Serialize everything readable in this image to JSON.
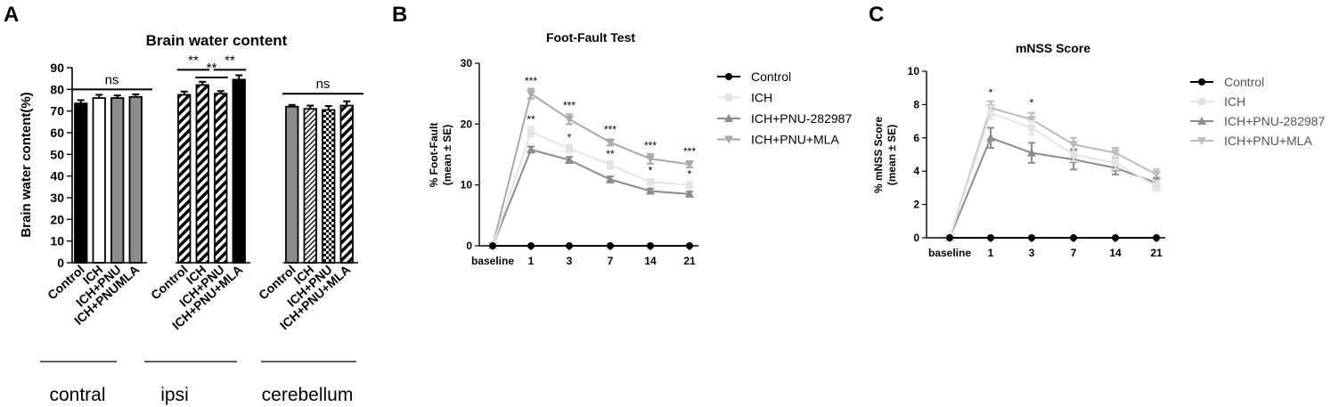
{
  "chart_data": [
    {
      "panel": "A",
      "type": "bar",
      "title": "Brain water content",
      "ylabel": "Brain water content(%)",
      "ylim": [
        0,
        90
      ],
      "yticks": [
        0,
        10,
        20,
        30,
        40,
        50,
        60,
        70,
        80,
        90
      ],
      "groups": [
        {
          "name": "contral",
          "categories": [
            "Control",
            "ICH",
            "ICH+PNU",
            "ICH+PNUMLA"
          ],
          "values": [
            73.5,
            76.0,
            76.0,
            76.5
          ],
          "errors": [
            1.5,
            1.5,
            1.2,
            1.2
          ],
          "fills": [
            "black",
            "white",
            "gray",
            "gray"
          ],
          "brackets": [
            {
              "label": "ns",
              "from": 0,
              "to": 3,
              "y": 80
            }
          ]
        },
        {
          "name": "ipsi",
          "categories": [
            "Control",
            "ICH",
            "ICH+PNU",
            "ICH+PNU+MLA"
          ],
          "values": [
            77.5,
            82.0,
            78.0,
            84.5
          ],
          "errors": [
            1.5,
            1.5,
            1.2,
            2.0
          ],
          "fills": [
            "hatch",
            "hatch",
            "hatch",
            "black"
          ],
          "brackets": [
            {
              "label": "**",
              "from": 0,
              "to": 1,
              "y": 89
            },
            {
              "label": "**",
              "from": 1,
              "to": 2,
              "y": 85.5
            },
            {
              "label": "**",
              "from": 2,
              "to": 3,
              "y": 89
            }
          ]
        },
        {
          "name": "cerebellum",
          "categories": [
            "Control",
            "ICH",
            "ICH+PNU",
            "ICH+PNU+MLA"
          ],
          "values": [
            72.0,
            71.0,
            70.5,
            72.5
          ],
          "errors": [
            0.8,
            1.5,
            1.8,
            2.0
          ],
          "fills": [
            "gray",
            "diag",
            "check",
            "hatch"
          ],
          "brackets": [
            {
              "label": "ns",
              "from": 0,
              "to": 3,
              "y": 78
            }
          ]
        }
      ]
    },
    {
      "panel": "B",
      "type": "line",
      "title": "Foot-Fault Test",
      "ylabel": "% Foot-Fault",
      "ylabel2": "(mean ± SE)",
      "x": [
        "baseline",
        "1",
        "3",
        "7",
        "14",
        "21"
      ],
      "ylim": [
        0,
        30
      ],
      "yticks": [
        0,
        10,
        20,
        30
      ],
      "legend_position": "right",
      "series": [
        {
          "name": "Control",
          "marker": "circle",
          "color": "#000000",
          "values": [
            0,
            0,
            0,
            0,
            0,
            0
          ],
          "errors": [
            0,
            0,
            0,
            0,
            0,
            0
          ]
        },
        {
          "name": "ICH",
          "marker": "square",
          "color": "#e4e4e4",
          "values": [
            0,
            18.7,
            16.0,
            13.3,
            10.5,
            10.0
          ],
          "errors": [
            0,
            0.8,
            0.6,
            0.6,
            0.5,
            0.5
          ]
        },
        {
          "name": "ICH+PNU-282987",
          "marker": "triangle-up",
          "color": "#8c8c8c",
          "values": [
            0,
            15.8,
            14.1,
            10.9,
            9.0,
            8.5
          ],
          "errors": [
            0,
            0.5,
            0.5,
            0.5,
            0.4,
            0.4
          ]
        },
        {
          "name": "ICH+PNU+MLA",
          "marker": "triangle-down",
          "color": "#a9a9a9",
          "values": [
            0,
            25.0,
            20.8,
            17.0,
            14.3,
            13.4
          ],
          "errors": [
            0,
            0.8,
            0.8,
            0.5,
            0.8,
            0.5
          ]
        }
      ],
      "annotations": [
        {
          "text": "***",
          "x": 1,
          "y": 26.5
        },
        {
          "text": "**",
          "x": 1,
          "y": 20.2
        },
        {
          "text": "***",
          "x": 2,
          "y": 22.5
        },
        {
          "text": "*",
          "x": 2,
          "y": 17.2
        },
        {
          "text": "***",
          "x": 3,
          "y": 18.5
        },
        {
          "text": "**",
          "x": 3,
          "y": 14.5
        },
        {
          "text": "***",
          "x": 4,
          "y": 15.9
        },
        {
          "text": "*",
          "x": 4,
          "y": 11.8
        },
        {
          "text": "***",
          "x": 5,
          "y": 14.9
        },
        {
          "text": "*",
          "x": 5,
          "y": 11.2
        }
      ]
    },
    {
      "panel": "C",
      "type": "line",
      "title": "mNSS Score",
      "ylabel": "% mNSS Score",
      "ylabel2": "(mean ± SE)",
      "x": [
        "baseline",
        "1",
        "3",
        "7",
        "14",
        "21"
      ],
      "ylim": [
        0,
        10
      ],
      "yticks": [
        0,
        2,
        4,
        6,
        8,
        10
      ],
      "legend_position": "right",
      "series": [
        {
          "name": "Control",
          "marker": "circle",
          "color": "#000000",
          "values": [
            0,
            0,
            0,
            0,
            0,
            0
          ],
          "errors": [
            0,
            0,
            0,
            0,
            0,
            0
          ]
        },
        {
          "name": "ICH",
          "marker": "square",
          "color": "#e4e4e4",
          "values": [
            0,
            7.5,
            6.6,
            5.0,
            4.5,
            3.1
          ],
          "errors": [
            0,
            0.4,
            0.4,
            0.4,
            0.4,
            0.3
          ]
        },
        {
          "name": "ICH+PNU-282987",
          "marker": "triangle-up",
          "color": "#8c8c8c",
          "values": [
            0,
            6.0,
            5.1,
            4.7,
            4.2,
            3.3
          ],
          "errors": [
            0,
            0.6,
            0.6,
            0.6,
            0.4,
            0.3
          ]
        },
        {
          "name": "ICH+PNU+MLA",
          "marker": "triangle-down",
          "color": "#bdbdbd",
          "values": [
            0,
            7.8,
            7.1,
            5.6,
            5.1,
            3.8
          ],
          "errors": [
            0,
            0.4,
            0.4,
            0.4,
            0.3,
            0.3
          ]
        }
      ],
      "annotations": [
        {
          "text": "*",
          "x": 1,
          "y": 8.5
        },
        {
          "text": "*",
          "x": 2,
          "y": 7.9
        }
      ]
    }
  ]
}
